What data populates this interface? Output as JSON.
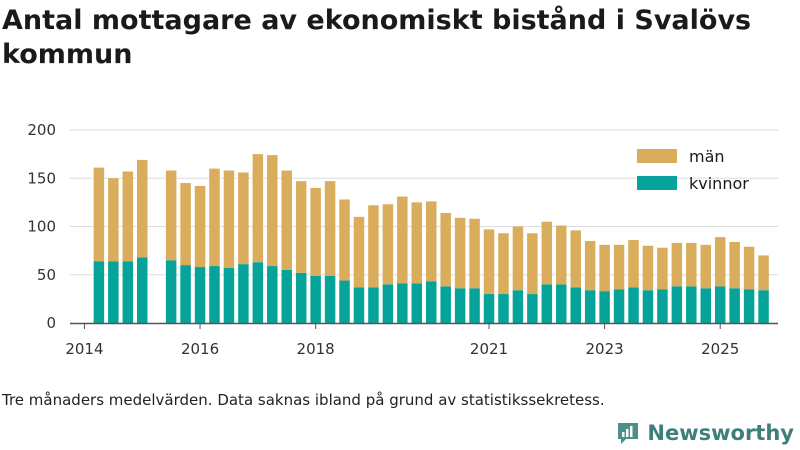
{
  "header": {
    "title": "Antal mottagare av ekonomiskt bistånd i Svalövs kommun"
  },
  "footer": {
    "note": "Tre månaders medelvärden. Data saknas ibland på grund av statistikssekretess.",
    "brand": "Newsworthy"
  },
  "icons": {
    "brand_logo": "newsworthy-logo-icon"
  },
  "colors": {
    "man": "#d9ad5b",
    "kvinnor": "#06a39a",
    "axis": "#555555",
    "grid": "#dddddd"
  },
  "chart_data": {
    "type": "bar",
    "stacked": true,
    "title": "Antal mottagare av ekonomiskt bistånd i Svalövs kommun",
    "xlabel": "",
    "ylabel": "",
    "ylim": [
      0,
      200
    ],
    "yticks": [
      0,
      50,
      100,
      150,
      200
    ],
    "xticks": [
      {
        "label": "2014",
        "pos": 2014.0
      },
      {
        "label": "2016",
        "pos": 2016.0
      },
      {
        "label": "2018",
        "pos": 2018.0
      },
      {
        "label": "2021",
        "pos": 2021.0
      },
      {
        "label": "2023",
        "pos": 2023.0
      },
      {
        "label": "2025",
        "pos": 2025.0
      }
    ],
    "legend_position": "top-right",
    "x_domain": [
      2013.75,
      2026.0
    ],
    "series": [
      {
        "name": "kvinnor",
        "color": "#06a39a",
        "values": [
          64,
          64,
          64,
          68,
          65,
          60,
          58,
          59,
          57,
          61,
          63,
          59,
          55,
          52,
          49,
          49,
          44,
          37,
          37,
          40,
          41,
          41,
          43,
          38,
          36,
          36,
          30,
          30,
          34,
          30,
          40,
          40,
          37,
          34,
          33,
          35,
          37,
          34,
          35,
          38,
          38,
          36,
          38,
          36,
          35,
          34
        ]
      },
      {
        "name": "män",
        "color": "#d9ad5b",
        "values": [
          97,
          86,
          93,
          101,
          93,
          85,
          84,
          101,
          101,
          95,
          112,
          115,
          103,
          95,
          91,
          98,
          84,
          73,
          85,
          83,
          90,
          84,
          83,
          76,
          73,
          72,
          67,
          63,
          66,
          63,
          65,
          61,
          59,
          51,
          48,
          46,
          49,
          46,
          43,
          45,
          45,
          45,
          51,
          48,
          44,
          36
        ]
      }
    ],
    "x": [
      2014.25,
      2014.5,
      2014.75,
      2015.0,
      2015.5,
      2015.75,
      2016.0,
      2016.25,
      2016.5,
      2016.75,
      2017.0,
      2017.25,
      2017.5,
      2017.75,
      2018.0,
      2018.25,
      2018.5,
      2018.75,
      2019.0,
      2019.25,
      2019.5,
      2019.75,
      2020.0,
      2020.25,
      2020.5,
      2020.75,
      2021.0,
      2021.25,
      2021.5,
      2021.75,
      2022.0,
      2022.25,
      2022.5,
      2022.75,
      2023.0,
      2023.25,
      2023.5,
      2023.75,
      2024.0,
      2024.25,
      2024.5,
      2024.75,
      2025.0,
      2025.25,
      2025.5,
      2025.75
    ],
    "categories": [],
    "legend": [
      {
        "label": "män",
        "color": "#d9ad5b"
      },
      {
        "label": "kvinnor",
        "color": "#06a39a"
      }
    ]
  }
}
